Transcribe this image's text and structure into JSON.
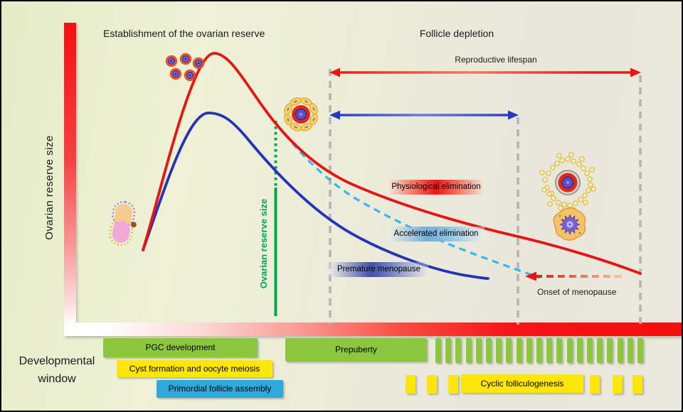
{
  "figure": {
    "left_phase_title": "Establishment of the ovarian reserve",
    "right_phase_title": "Follicle depletion",
    "y_axis_label": "Ovarian reserve size"
  },
  "annotations": {
    "reproductive_lifespan": "Reproductive lifespan",
    "reserve_marker_label": "Ovarian reserve size",
    "physiological_elimination": "Physiological elimination",
    "accelerated_elimination": "Accelerated elimination",
    "premature_menopause": "Premature menopause",
    "onset_of_menopause": "Onset of menopause"
  },
  "timeline": {
    "axis_label": "Developmental window",
    "pgc_label": "PGC development",
    "cyst_label": "Cyst formation and oocyte meiosis",
    "assembly_label": "Primordial follicle assembly",
    "prepuberty_label": "Prepuberty",
    "cyclic_label": "Cyclic folliculogenesis",
    "comb_tick_count": 21,
    "cyclic_left_tick_count": 3,
    "cyclic_right_tick_count": 3
  },
  "curves": [
    {
      "name": "Physiological elimination",
      "color": "#e81414",
      "style": "solid",
      "description": "Ovarian reserve rises during establishment, peaks, then declines slowly until menopause at end of reproductive lifespan"
    },
    {
      "name": "Premature menopause",
      "color": "#2433b8",
      "style": "solid",
      "description": "Smaller initial reserve established; declines and is exhausted early (premature menopause)"
    },
    {
      "name": "Accelerated elimination",
      "color": "#38b6ec",
      "style": "dashed",
      "description": "Normal reserve eliminated at accelerated rate, reaching menopause earlier than physiological curve"
    }
  ],
  "icons": [
    {
      "name": "germ-cell-cluster-icon",
      "meaning": "proliferating primordial germ cells"
    },
    {
      "name": "primordial-gonad-icon",
      "meaning": "embryonic gonad with germ cells"
    },
    {
      "name": "primordial-follicle-icon",
      "meaning": "primordial follicle (oocyte with granulosa cells)"
    },
    {
      "name": "antral-follicle-icon",
      "meaning": "growing antral follicle"
    },
    {
      "name": "atretic-follicle-icon",
      "meaning": "atretic degenerating follicle"
    }
  ],
  "colors": {
    "physiological_curve": "#e81414",
    "premature_curve": "#2433b8",
    "accelerated_curve": "#38b6ec",
    "reserve_marker_green": "#00a651",
    "timeline_green": "#8cc63f",
    "timeline_yellow": "#ffe60a",
    "timeline_blue": "#2fa8dc",
    "axis_gradient_red": "#f81212",
    "boundary_gray": "#b4b4b4"
  }
}
